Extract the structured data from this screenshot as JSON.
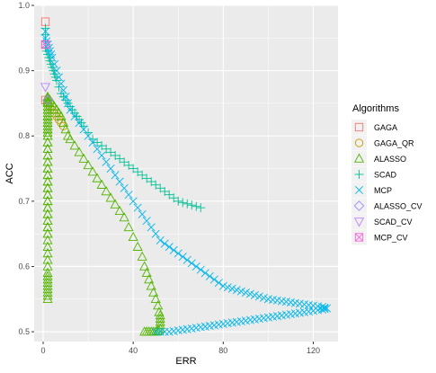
{
  "chart_data": {
    "type": "scatter",
    "xlabel": "ERR",
    "ylabel": "ACC",
    "xlim": [
      -4,
      131
    ],
    "ylim": [
      0.485,
      1.0
    ],
    "x_ticks": [
      0,
      40,
      80,
      120
    ],
    "x_tick_labels": [
      "0",
      "40",
      "80",
      "120"
    ],
    "y_ticks": [
      0.5,
      0.6,
      0.7,
      0.8,
      0.9,
      1.0
    ],
    "y_tick_labels": [
      "0.5",
      "0.6",
      "0.7",
      "0.8",
      "0.9",
      "1.0"
    ],
    "grid": true,
    "background": "#ebebeb",
    "legend": {
      "title": "Algorithms",
      "placement": "right",
      "entries": [
        "GAGA",
        "GAGA_QR",
        "ALASSO",
        "SCAD",
        "MCP",
        "ALASSO_CV",
        "SCAD_CV",
        "MCP_CV"
      ]
    },
    "series": [
      {
        "name": "GAGA",
        "color": "#F8766D",
        "shape": "square",
        "x": [
          1,
          1,
          1
        ],
        "y": [
          0.975,
          0.94,
          0.855
        ]
      },
      {
        "name": "GAGA_QR",
        "color": "#C49A00",
        "shape": "circle",
        "x": [
          2,
          3,
          4,
          5,
          6,
          7,
          8,
          9
        ],
        "y": [
          0.855,
          0.845,
          0.84,
          0.835,
          0.83,
          0.825,
          0.82,
          0.815
        ]
      },
      {
        "name": "ALASSO",
        "color": "#53B400",
        "shape": "triangle",
        "x": [
          2,
          2,
          2,
          2,
          2,
          2,
          2,
          2,
          2,
          2,
          2,
          2,
          2,
          2,
          2,
          2,
          2,
          2,
          2,
          2,
          2,
          2,
          2,
          2,
          2,
          2,
          2,
          2,
          2,
          2,
          2,
          2,
          2,
          2,
          2,
          2,
          2,
          2,
          2,
          2,
          2,
          2,
          2,
          2,
          2,
          2,
          2,
          2,
          2,
          2,
          2,
          2,
          2,
          2,
          2,
          2,
          2,
          2,
          2,
          2,
          2,
          2,
          2,
          2,
          3,
          4,
          5,
          6,
          7,
          8,
          9,
          10,
          11,
          12,
          14,
          16,
          18,
          20,
          22,
          24,
          26,
          28,
          30,
          32,
          34,
          36,
          38,
          40,
          42,
          44,
          45,
          46,
          47,
          48,
          49,
          50,
          51,
          51.5,
          52,
          52,
          52,
          52,
          52,
          51.5,
          51,
          50,
          49,
          48,
          47,
          46,
          45
        ],
        "y": [
          0.55,
          0.555,
          0.56,
          0.565,
          0.57,
          0.575,
          0.58,
          0.585,
          0.59,
          0.6,
          0.61,
          0.62,
          0.63,
          0.64,
          0.65,
          0.66,
          0.67,
          0.68,
          0.69,
          0.7,
          0.71,
          0.72,
          0.73,
          0.74,
          0.75,
          0.76,
          0.77,
          0.78,
          0.79,
          0.8,
          0.81,
          0.82,
          0.83,
          0.84,
          0.85,
          0.855,
          0.86,
          0.858,
          0.852,
          0.845,
          0.84,
          0.835,
          0.83,
          0.825,
          0.82,
          0.815,
          0.81,
          0.805,
          0.8,
          0.79,
          0.78,
          0.77,
          0.76,
          0.75,
          0.74,
          0.73,
          0.72,
          0.71,
          0.7,
          0.69,
          0.68,
          0.67,
          0.66,
          0.65,
          0.855,
          0.85,
          0.845,
          0.84,
          0.835,
          0.83,
          0.82,
          0.81,
          0.8,
          0.795,
          0.785,
          0.775,
          0.765,
          0.755,
          0.745,
          0.735,
          0.725,
          0.715,
          0.705,
          0.695,
          0.685,
          0.675,
          0.66,
          0.645,
          0.63,
          0.615,
          0.6,
          0.59,
          0.58,
          0.57,
          0.56,
          0.55,
          0.54,
          0.53,
          0.525,
          0.52,
          0.515,
          0.51,
          0.505,
          0.502,
          0.501,
          0.5,
          0.5,
          0.5,
          0.5,
          0.5,
          0.5
        ]
      },
      {
        "name": "SCAD",
        "color": "#00C094",
        "shape": "plus",
        "x": [
          1,
          1,
          1,
          1,
          1.5,
          2,
          2.5,
          3,
          3.5,
          4,
          4.5,
          5,
          5.5,
          6,
          7,
          8,
          9,
          10,
          11,
          12,
          13,
          14,
          15,
          16,
          17,
          18,
          20,
          22,
          24,
          26,
          28,
          30,
          32,
          34,
          36,
          38,
          40,
          42,
          44,
          46,
          48,
          50,
          52,
          54,
          56,
          58,
          60,
          62,
          64,
          66,
          68,
          70
        ],
        "y": [
          0.965,
          0.955,
          0.945,
          0.935,
          0.93,
          0.925,
          0.92,
          0.915,
          0.91,
          0.905,
          0.9,
          0.895,
          0.89,
          0.885,
          0.875,
          0.865,
          0.86,
          0.855,
          0.85,
          0.845,
          0.84,
          0.835,
          0.83,
          0.825,
          0.82,
          0.815,
          0.805,
          0.795,
          0.79,
          0.785,
          0.78,
          0.775,
          0.77,
          0.765,
          0.76,
          0.755,
          0.75,
          0.745,
          0.74,
          0.735,
          0.73,
          0.725,
          0.72,
          0.715,
          0.71,
          0.705,
          0.7,
          0.698,
          0.696,
          0.694,
          0.692,
          0.69
        ]
      },
      {
        "name": "MCP",
        "color": "#00B6EB",
        "shape": "cross",
        "x": [
          1,
          1,
          1.5,
          2,
          2.5,
          3,
          3.5,
          4,
          5,
          6,
          7,
          8,
          9,
          10,
          11,
          12,
          14,
          16,
          18,
          20,
          22,
          24,
          26,
          28,
          30,
          32,
          34,
          36,
          38,
          40,
          42,
          44,
          46,
          48,
          50,
          52,
          54,
          56,
          58,
          60,
          62,
          64,
          66,
          68,
          70,
          72,
          74,
          76,
          78,
          80,
          82,
          84,
          86,
          88,
          90,
          92,
          94,
          96,
          98,
          100,
          102,
          104,
          106,
          108,
          110,
          112,
          114,
          116,
          118,
          120,
          122,
          124,
          125,
          126,
          125,
          124,
          122,
          120,
          118,
          116,
          114,
          112,
          110,
          108,
          106,
          104,
          102,
          100,
          98,
          96,
          94,
          92,
          90,
          88,
          86,
          84,
          82,
          80,
          78,
          76,
          74,
          72,
          70,
          68,
          66,
          64,
          62,
          60,
          58,
          56,
          54,
          52,
          50
        ],
        "y": [
          0.96,
          0.95,
          0.945,
          0.94,
          0.935,
          0.93,
          0.925,
          0.92,
          0.91,
          0.9,
          0.89,
          0.88,
          0.87,
          0.86,
          0.85,
          0.84,
          0.83,
          0.82,
          0.81,
          0.8,
          0.79,
          0.78,
          0.77,
          0.76,
          0.75,
          0.74,
          0.73,
          0.72,
          0.71,
          0.7,
          0.69,
          0.68,
          0.67,
          0.66,
          0.65,
          0.64,
          0.635,
          0.63,
          0.625,
          0.62,
          0.615,
          0.61,
          0.605,
          0.6,
          0.595,
          0.59,
          0.585,
          0.58,
          0.575,
          0.57,
          0.568,
          0.566,
          0.564,
          0.562,
          0.56,
          0.558,
          0.556,
          0.554,
          0.552,
          0.55,
          0.549,
          0.548,
          0.547,
          0.546,
          0.545,
          0.544,
          0.543,
          0.542,
          0.541,
          0.54,
          0.539,
          0.538,
          0.537,
          0.536,
          0.535,
          0.534,
          0.533,
          0.532,
          0.531,
          0.53,
          0.529,
          0.528,
          0.527,
          0.526,
          0.525,
          0.524,
          0.523,
          0.522,
          0.521,
          0.52,
          0.519,
          0.518,
          0.517,
          0.516,
          0.515,
          0.514,
          0.513,
          0.512,
          0.511,
          0.51,
          0.509,
          0.508,
          0.507,
          0.506,
          0.505,
          0.504,
          0.503,
          0.502,
          0.501,
          0.5,
          0.5,
          0.5,
          0.5
        ]
      },
      {
        "name": "ALASSO_CV",
        "color": "#A58AFF",
        "shape": "diamond",
        "x": [
          2
        ],
        "y": [
          0.855
        ]
      },
      {
        "name": "SCAD_CV",
        "color": "#B983FF",
        "shape": "triangle-down",
        "x": [
          1
        ],
        "y": [
          0.875
        ]
      },
      {
        "name": "MCP_CV",
        "color": "#FB61D7",
        "shape": "square-x",
        "x": [
          1
        ],
        "y": [
          0.94
        ]
      }
    ]
  }
}
